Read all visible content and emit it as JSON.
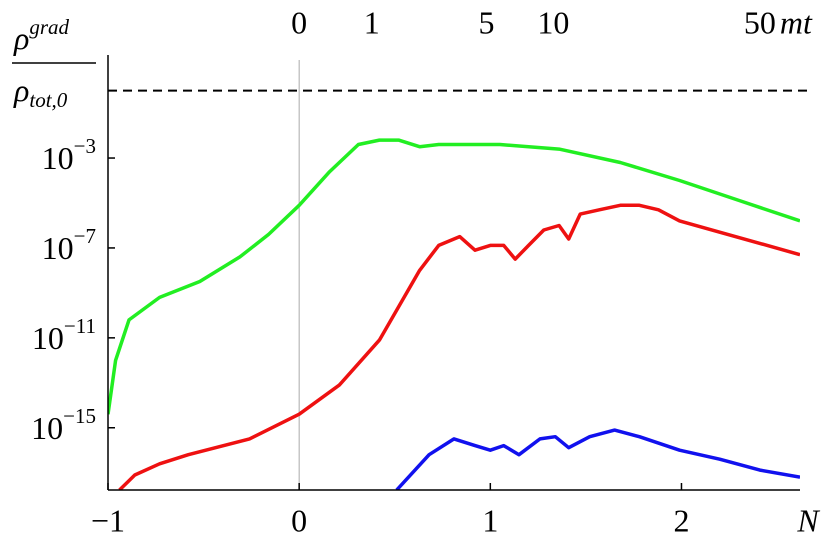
{
  "chart_data": {
    "type": "line",
    "log_y": true,
    "y_label": {
      "numerator": {
        "symbol": "ρ",
        "superscript": "grad"
      },
      "denominator": {
        "symbol": "ρ",
        "subscript": "tot,0"
      }
    },
    "x_label": "N",
    "xlim": [
      -1,
      2.62
    ],
    "xticks": [
      {
        "value": -1,
        "label": "−1"
      },
      0,
      1,
      2
    ],
    "ylim": [
      1.7e-18,
      23
    ],
    "yticks": [
      {
        "value": 0.001,
        "label": "10−3"
      },
      {
        "value": 1e-07,
        "label": "10−7"
      },
      {
        "value": 1e-11,
        "label": "10−11"
      },
      {
        "value": 1e-15,
        "label": "10−15"
      }
    ],
    "top_axis": {
      "label": "mt",
      "ticks": [
        0,
        1,
        5,
        10,
        50
      ],
      "at_x": [
        0,
        0.38,
        0.98,
        1.33,
        2.41
      ]
    },
    "hline": 1,
    "vline": 0,
    "series": [
      {
        "color": "#22ee22",
        "x": [
          -1,
          -0.96,
          -0.89,
          -0.73,
          -0.52,
          -0.31,
          -0.16,
          0,
          0.16,
          0.31,
          0.42,
          0.52,
          0.63,
          0.73,
          1.05,
          1.36,
          1.68,
          1.99,
          2.3,
          2.62
        ],
        "values": [
          4e-15,
          1e-12,
          6.3e-11,
          6.3e-10,
          3.2e-09,
          4e-08,
          4e-07,
          7.9e-06,
          0.00025,
          0.004,
          0.0063,
          0.0063,
          0.0032,
          0.004,
          0.004,
          0.0025,
          0.00063,
          0.0001,
          1.3e-05,
          1.6e-06
        ]
      },
      {
        "color": "#ee1111",
        "x": [
          -0.94,
          -0.86,
          -0.73,
          -0.58,
          -0.26,
          0,
          0.21,
          0.42,
          0.63,
          0.73,
          0.84,
          0.92,
          1.0,
          1.07,
          1.13,
          1.2,
          1.28,
          1.36,
          1.41,
          1.47,
          1.57,
          1.68,
          1.78,
          1.88,
          1.99,
          2.2,
          2.41,
          2.62
        ],
        "values": [
          1.7e-18,
          7.9e-18,
          2.5e-17,
          6.3e-17,
          3.2e-16,
          4e-15,
          7.9e-14,
          7.9e-12,
          1e-08,
          1.3e-07,
          3.2e-07,
          7.9e-08,
          1.3e-07,
          1.3e-07,
          3.2e-08,
          1.3e-07,
          6.3e-07,
          1e-06,
          2.5e-07,
          3.2e-06,
          5e-06,
          7.9e-06,
          7.9e-06,
          5e-06,
          1.6e-06,
          5e-07,
          1.6e-07,
          5e-08
        ]
      },
      {
        "color": "#1111ee",
        "x": [
          0.51,
          0.68,
          0.81,
          0.92,
          1.0,
          1.07,
          1.15,
          1.26,
          1.34,
          1.41,
          1.52,
          1.65,
          1.78,
          1.99,
          2.2,
          2.41,
          2.62
        ],
        "values": [
          1.7e-18,
          6.3e-17,
          3.2e-16,
          1.6e-16,
          1e-16,
          1.6e-16,
          6.3e-17,
          3.2e-16,
          4e-16,
          1.3e-16,
          4e-16,
          7.9e-16,
          4e-16,
          1e-16,
          4e-17,
          1.3e-17,
          6.3e-18
        ]
      }
    ]
  }
}
